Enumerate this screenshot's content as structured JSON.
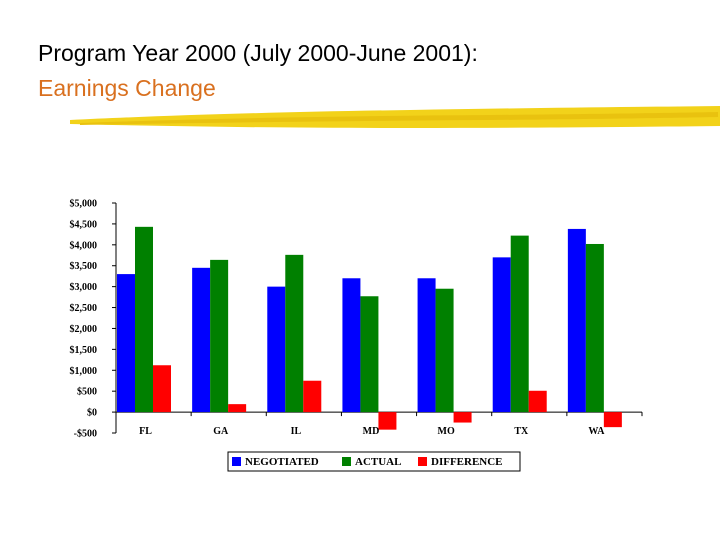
{
  "slide": {
    "title_line1": "Program Year 2000 (July 2000-June 2001):",
    "title_line2": "Earnings Change",
    "title_color": "#000000",
    "subtitle_color": "#d9701f",
    "brush_color": "#f2d21a"
  },
  "chart_data": {
    "type": "bar",
    "categories": [
      "FL",
      "GA",
      "IL",
      "MD",
      "MO",
      "TX",
      "WA"
    ],
    "series": [
      {
        "name": "NEGOTIATED",
        "color": "#0000ff",
        "values": [
          3300,
          3450,
          3000,
          3200,
          3200,
          3700,
          4380
        ]
      },
      {
        "name": "ACTUAL",
        "color": "#008000",
        "values": [
          4430,
          3640,
          3760,
          2770,
          2950,
          4220,
          4020
        ]
      },
      {
        "name": "DIFFERENCE",
        "color": "#ff0000",
        "values": [
          1120,
          190,
          750,
          -420,
          -250,
          510,
          -360
        ]
      }
    ],
    "ylim": [
      -500,
      5000
    ],
    "yticks": [
      -500,
      0,
      500,
      1000,
      1500,
      2000,
      2500,
      3000,
      3500,
      4000,
      4500,
      5000
    ],
    "ytick_labels": [
      "-$500",
      "$0",
      "$500",
      "$1,000",
      "$1,500",
      "$2,000",
      "$2,500",
      "$3,000",
      "$3,500",
      "$4,000",
      "$4,500",
      "$5,000"
    ],
    "grid": false,
    "legend_position": "bottom"
  }
}
